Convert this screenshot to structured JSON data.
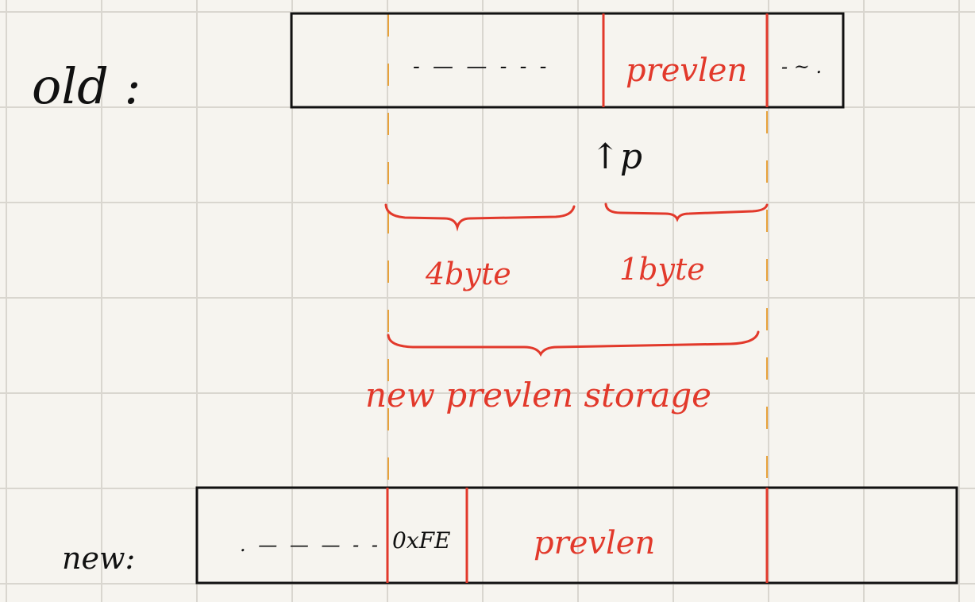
{
  "colors": {
    "paper": "#f6f4ef",
    "grid": "#d9d6cf",
    "ink": "#111111",
    "accent_red": "#e2392b",
    "guide_orange": "#e8a23a"
  },
  "labels": {
    "old": "old :",
    "new": "new:",
    "pointer": "↑p"
  },
  "old_block": {
    "cell_1": "- — — - - -",
    "cell_2": "prevlen",
    "cell_3": "- ~ ."
  },
  "new_block": {
    "cell_1": ". — — — - -",
    "cell_2": "0xFE",
    "cell_3": "prevlen"
  },
  "annotations": {
    "brace_left": "4byte",
    "brace_right": "1byte",
    "brace_total": "new prevlen storage"
  }
}
